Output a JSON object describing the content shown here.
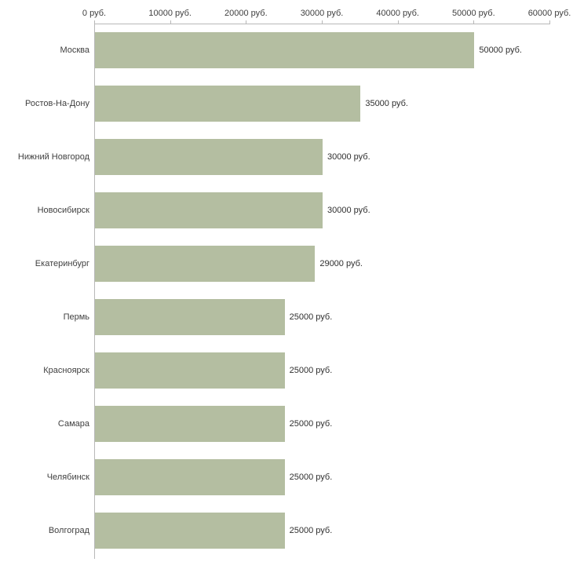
{
  "chart_data": {
    "type": "bar",
    "orientation": "horizontal",
    "title": "",
    "xlabel": "",
    "ylabel": "",
    "categories": [
      "Москва",
      "Ростов-На-Дону",
      "Нижний Новгород",
      "Новосибирск",
      "Екатеринбург",
      "Пермь",
      "Красноярск",
      "Самара",
      "Челябинск",
      "Волгоград"
    ],
    "values": [
      50000,
      35000,
      30000,
      30000,
      29000,
      25000,
      25000,
      25000,
      25000,
      25000
    ],
    "value_labels": [
      "50000 руб.",
      "35000 руб.",
      "30000 руб.",
      "30000 руб.",
      "29000 руб.",
      "25000 руб.",
      "25000 руб.",
      "25000 руб.",
      "25000 руб.",
      "25000 руб."
    ],
    "x_ticks": [
      0,
      10000,
      20000,
      30000,
      40000,
      50000,
      60000
    ],
    "x_tick_labels": [
      "0 руб.",
      "10000 руб.",
      "20000 руб.",
      "30000 руб.",
      "40000 руб.",
      "50000 руб.",
      "60000 руб."
    ],
    "xlim": [
      0,
      60000
    ],
    "grid": false,
    "legend": "none",
    "bar_color": "#b4bea1",
    "axis_color": "#b8b8b8",
    "text_color": "#3f3f3f"
  }
}
